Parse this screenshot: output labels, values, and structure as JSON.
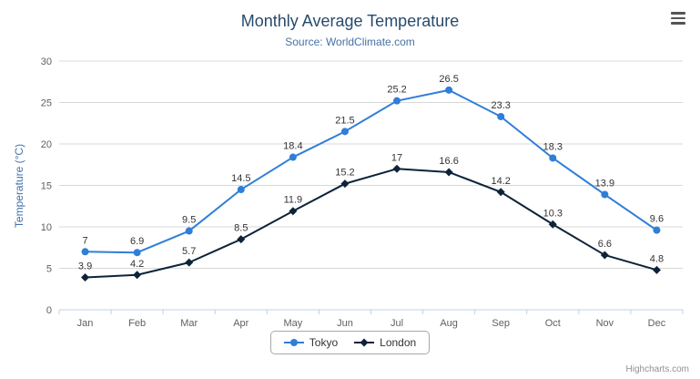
{
  "header": {
    "title": "Monthly Average Temperature",
    "subtitle": "Source: WorldClimate.com"
  },
  "export_menu": {
    "icon": "hamburger-menu-icon"
  },
  "credits": {
    "label": "Highcharts.com"
  },
  "colors": {
    "title": "#274b6d",
    "subtitle": "#4572a7",
    "axis_label": "#606060",
    "grid_line": "#d8d8d8",
    "axis_line": "#c0d0e0",
    "data_label": "#333333",
    "tokyo_series": "#2f7ed8",
    "london_series": "#0d233a"
  },
  "chart_data": {
    "type": "line",
    "title": "Monthly Average Temperature",
    "subtitle": "Source: WorldClimate.com",
    "categories": [
      "Jan",
      "Feb",
      "Mar",
      "Apr",
      "May",
      "Jun",
      "Jul",
      "Aug",
      "Sep",
      "Oct",
      "Nov",
      "Dec"
    ],
    "series": [
      {
        "name": "Tokyo",
        "color": "#2f7ed8",
        "marker": "circle",
        "values": [
          7,
          6.9,
          9.5,
          14.5,
          18.4,
          21.5,
          25.2,
          26.5,
          23.3,
          18.3,
          13.9,
          9.6
        ]
      },
      {
        "name": "London",
        "color": "#0d233a",
        "marker": "diamond",
        "values": [
          3.9,
          4.2,
          5.7,
          8.5,
          11.9,
          15.2,
          17,
          16.6,
          14.2,
          10.3,
          6.6,
          4.8
        ]
      }
    ],
    "xlabel": "",
    "ylabel": "Temperature (°C)",
    "ylim": [
      0,
      30
    ],
    "ytick_interval": 5,
    "grid": true,
    "legend_position": "bottom-center",
    "data_labels": true
  }
}
